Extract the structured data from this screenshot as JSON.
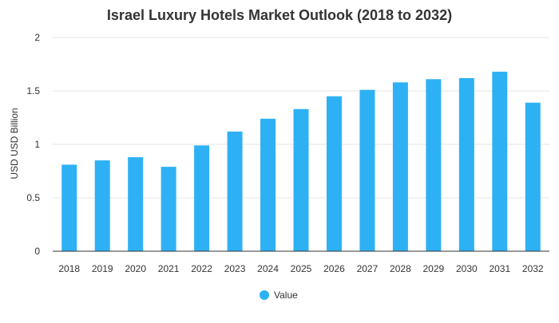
{
  "chart_data": {
    "type": "bar",
    "title": "Israel Luxury Hotels Market Outlook (2018 to 2032)",
    "xlabel": "",
    "ylabel": "USD USD Billion",
    "categories": [
      "2018",
      "2019",
      "2020",
      "2021",
      "2022",
      "2023",
      "2024",
      "2025",
      "2026",
      "2027",
      "2028",
      "2029",
      "2030",
      "2031",
      "2032"
    ],
    "series": [
      {
        "name": "Value",
        "values": [
          0.81,
          0.85,
          0.88,
          0.79,
          0.99,
          1.12,
          1.24,
          1.33,
          1.45,
          1.51,
          1.58,
          1.61,
          1.62,
          1.68,
          1.39
        ]
      }
    ],
    "ylim": [
      0,
      2
    ],
    "yticks": [
      "0",
      "0.5",
      "1",
      "1.5",
      "2"
    ],
    "grid": true,
    "legend_position": "bottom-center",
    "colors": {
      "bar": "#2eb1f4",
      "grid": "#e6e6e6",
      "axis": "#333333",
      "text": "#333333"
    }
  }
}
